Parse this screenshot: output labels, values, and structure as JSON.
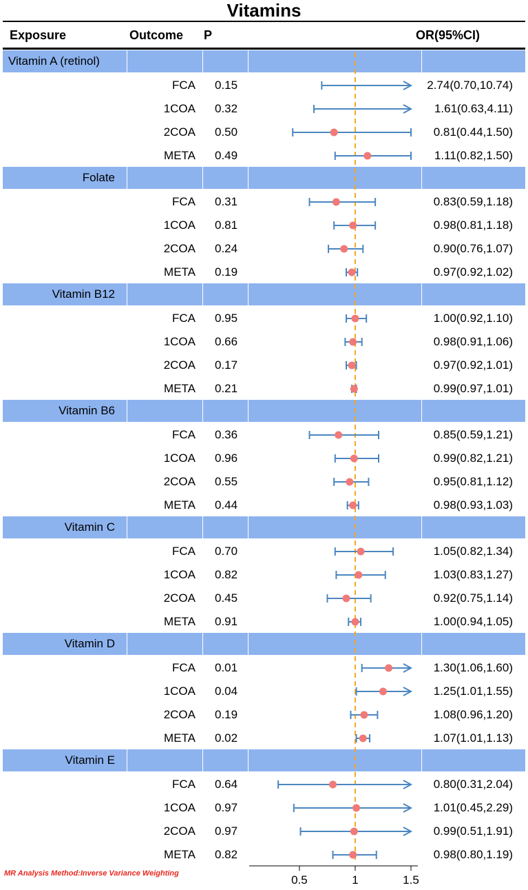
{
  "header": {
    "title": "Vitamins",
    "col_exposure": "Exposure",
    "col_outcome": "Outcome",
    "col_p": "P",
    "col_or": "OR(95%CI)"
  },
  "footnote": "MR Analysis Method:Inverse Variance Weighting",
  "chart_data": {
    "type": "forest",
    "title": "Vitamins",
    "x_ticks": [
      "0.5",
      "1",
      "1.5"
    ],
    "x_range": [
      0.05,
      1.5
    ],
    "reference_line": 1,
    "groups": [
      {
        "exposure": "Vitamin A (retinol)",
        "rows": [
          {
            "outcome": "FCA",
            "p": "0.15",
            "or": 2.74,
            "lo": 0.7,
            "hi": 10.74,
            "or_text": "2.74(0.70,10.74)"
          },
          {
            "outcome": "1COA",
            "p": "0.32",
            "or": 1.61,
            "lo": 0.63,
            "hi": 4.11,
            "or_text": "1.61(0.63,4.11)"
          },
          {
            "outcome": "2COA",
            "p": "0.50",
            "or": 0.81,
            "lo": 0.44,
            "hi": 1.5,
            "or_text": "0.81(0.44,1.50)"
          },
          {
            "outcome": "META",
            "p": "0.49",
            "or": 1.11,
            "lo": 0.82,
            "hi": 1.5,
            "or_text": "1.11(0.82,1.50)"
          }
        ]
      },
      {
        "exposure": "Folate",
        "rows": [
          {
            "outcome": "FCA",
            "p": "0.31",
            "or": 0.83,
            "lo": 0.59,
            "hi": 1.18,
            "or_text": "0.83(0.59,1.18)"
          },
          {
            "outcome": "1COA",
            "p": "0.81",
            "or": 0.98,
            "lo": 0.81,
            "hi": 1.18,
            "or_text": "0.98(0.81,1.18)"
          },
          {
            "outcome": "2COA",
            "p": "0.24",
            "or": 0.9,
            "lo": 0.76,
            "hi": 1.07,
            "or_text": "0.90(0.76,1.07)"
          },
          {
            "outcome": "META",
            "p": "0.19",
            "or": 0.97,
            "lo": 0.92,
            "hi": 1.02,
            "or_text": "0.97(0.92,1.02)"
          }
        ]
      },
      {
        "exposure": "Vitamin B12",
        "rows": [
          {
            "outcome": "FCA",
            "p": "0.95",
            "or": 1.0,
            "lo": 0.92,
            "hi": 1.1,
            "or_text": "1.00(0.92,1.10)"
          },
          {
            "outcome": "1COA",
            "p": "0.66",
            "or": 0.98,
            "lo": 0.91,
            "hi": 1.06,
            "or_text": "0.98(0.91,1.06)"
          },
          {
            "outcome": "2COA",
            "p": "0.17",
            "or": 0.97,
            "lo": 0.92,
            "hi": 1.01,
            "or_text": "0.97(0.92,1.01)"
          },
          {
            "outcome": "META",
            "p": "0.21",
            "or": 0.99,
            "lo": 0.97,
            "hi": 1.01,
            "or_text": "0.99(0.97,1.01)"
          }
        ]
      },
      {
        "exposure": "Vitamin B6",
        "rows": [
          {
            "outcome": "FCA",
            "p": "0.36",
            "or": 0.85,
            "lo": 0.59,
            "hi": 1.21,
            "or_text": "0.85(0.59,1.21)"
          },
          {
            "outcome": "1COA",
            "p": "0.96",
            "or": 0.99,
            "lo": 0.82,
            "hi": 1.21,
            "or_text": "0.99(0.82,1.21)"
          },
          {
            "outcome": "2COA",
            "p": "0.55",
            "or": 0.95,
            "lo": 0.81,
            "hi": 1.12,
            "or_text": "0.95(0.81,1.12)"
          },
          {
            "outcome": "META",
            "p": "0.44",
            "or": 0.98,
            "lo": 0.93,
            "hi": 1.03,
            "or_text": "0.98(0.93,1.03)"
          }
        ]
      },
      {
        "exposure": "Vitamin C",
        "rows": [
          {
            "outcome": "FCA",
            "p": "0.70",
            "or": 1.05,
            "lo": 0.82,
            "hi": 1.34,
            "or_text": "1.05(0.82,1.34)"
          },
          {
            "outcome": "1COA",
            "p": "0.82",
            "or": 1.03,
            "lo": 0.83,
            "hi": 1.27,
            "or_text": "1.03(0.83,1.27)"
          },
          {
            "outcome": "2COA",
            "p": "0.45",
            "or": 0.92,
            "lo": 0.75,
            "hi": 1.14,
            "or_text": "0.92(0.75,1.14)"
          },
          {
            "outcome": "META",
            "p": "0.91",
            "or": 1.0,
            "lo": 0.94,
            "hi": 1.05,
            "or_text": "1.00(0.94,1.05)"
          }
        ]
      },
      {
        "exposure": "Vitamin D",
        "rows": [
          {
            "outcome": "FCA",
            "p": "0.01",
            "or": 1.3,
            "lo": 1.06,
            "hi": 1.6,
            "or_text": "1.30(1.06,1.60)"
          },
          {
            "outcome": "1COA",
            "p": "0.04",
            "or": 1.25,
            "lo": 1.01,
            "hi": 1.55,
            "or_text": "1.25(1.01,1.55)"
          },
          {
            "outcome": "2COA",
            "p": "0.19",
            "or": 1.08,
            "lo": 0.96,
            "hi": 1.2,
            "or_text": "1.08(0.96,1.20)"
          },
          {
            "outcome": "META",
            "p": "0.02",
            "or": 1.07,
            "lo": 1.01,
            "hi": 1.13,
            "or_text": "1.07(1.01,1.13)"
          }
        ]
      },
      {
        "exposure": "Vitamin E",
        "rows": [
          {
            "outcome": "FCA",
            "p": "0.64",
            "or": 0.8,
            "lo": 0.31,
            "hi": 2.04,
            "or_text": "0.80(0.31,2.04)"
          },
          {
            "outcome": "1COA",
            "p": "0.97",
            "or": 1.01,
            "lo": 0.45,
            "hi": 2.29,
            "or_text": "1.01(0.45,2.29)"
          },
          {
            "outcome": "2COA",
            "p": "0.97",
            "or": 0.99,
            "lo": 0.51,
            "hi": 1.91,
            "or_text": "0.99(0.51,1.91)"
          },
          {
            "outcome": "META",
            "p": "0.82",
            "or": 0.98,
            "lo": 0.8,
            "hi": 1.19,
            "or_text": "0.98(0.80,1.19)"
          }
        ]
      }
    ],
    "colors": {
      "group_band": "#8db3ef",
      "ci_line": "#4a86c0",
      "point": "#f07a78",
      "reference": "#f5a623"
    }
  }
}
